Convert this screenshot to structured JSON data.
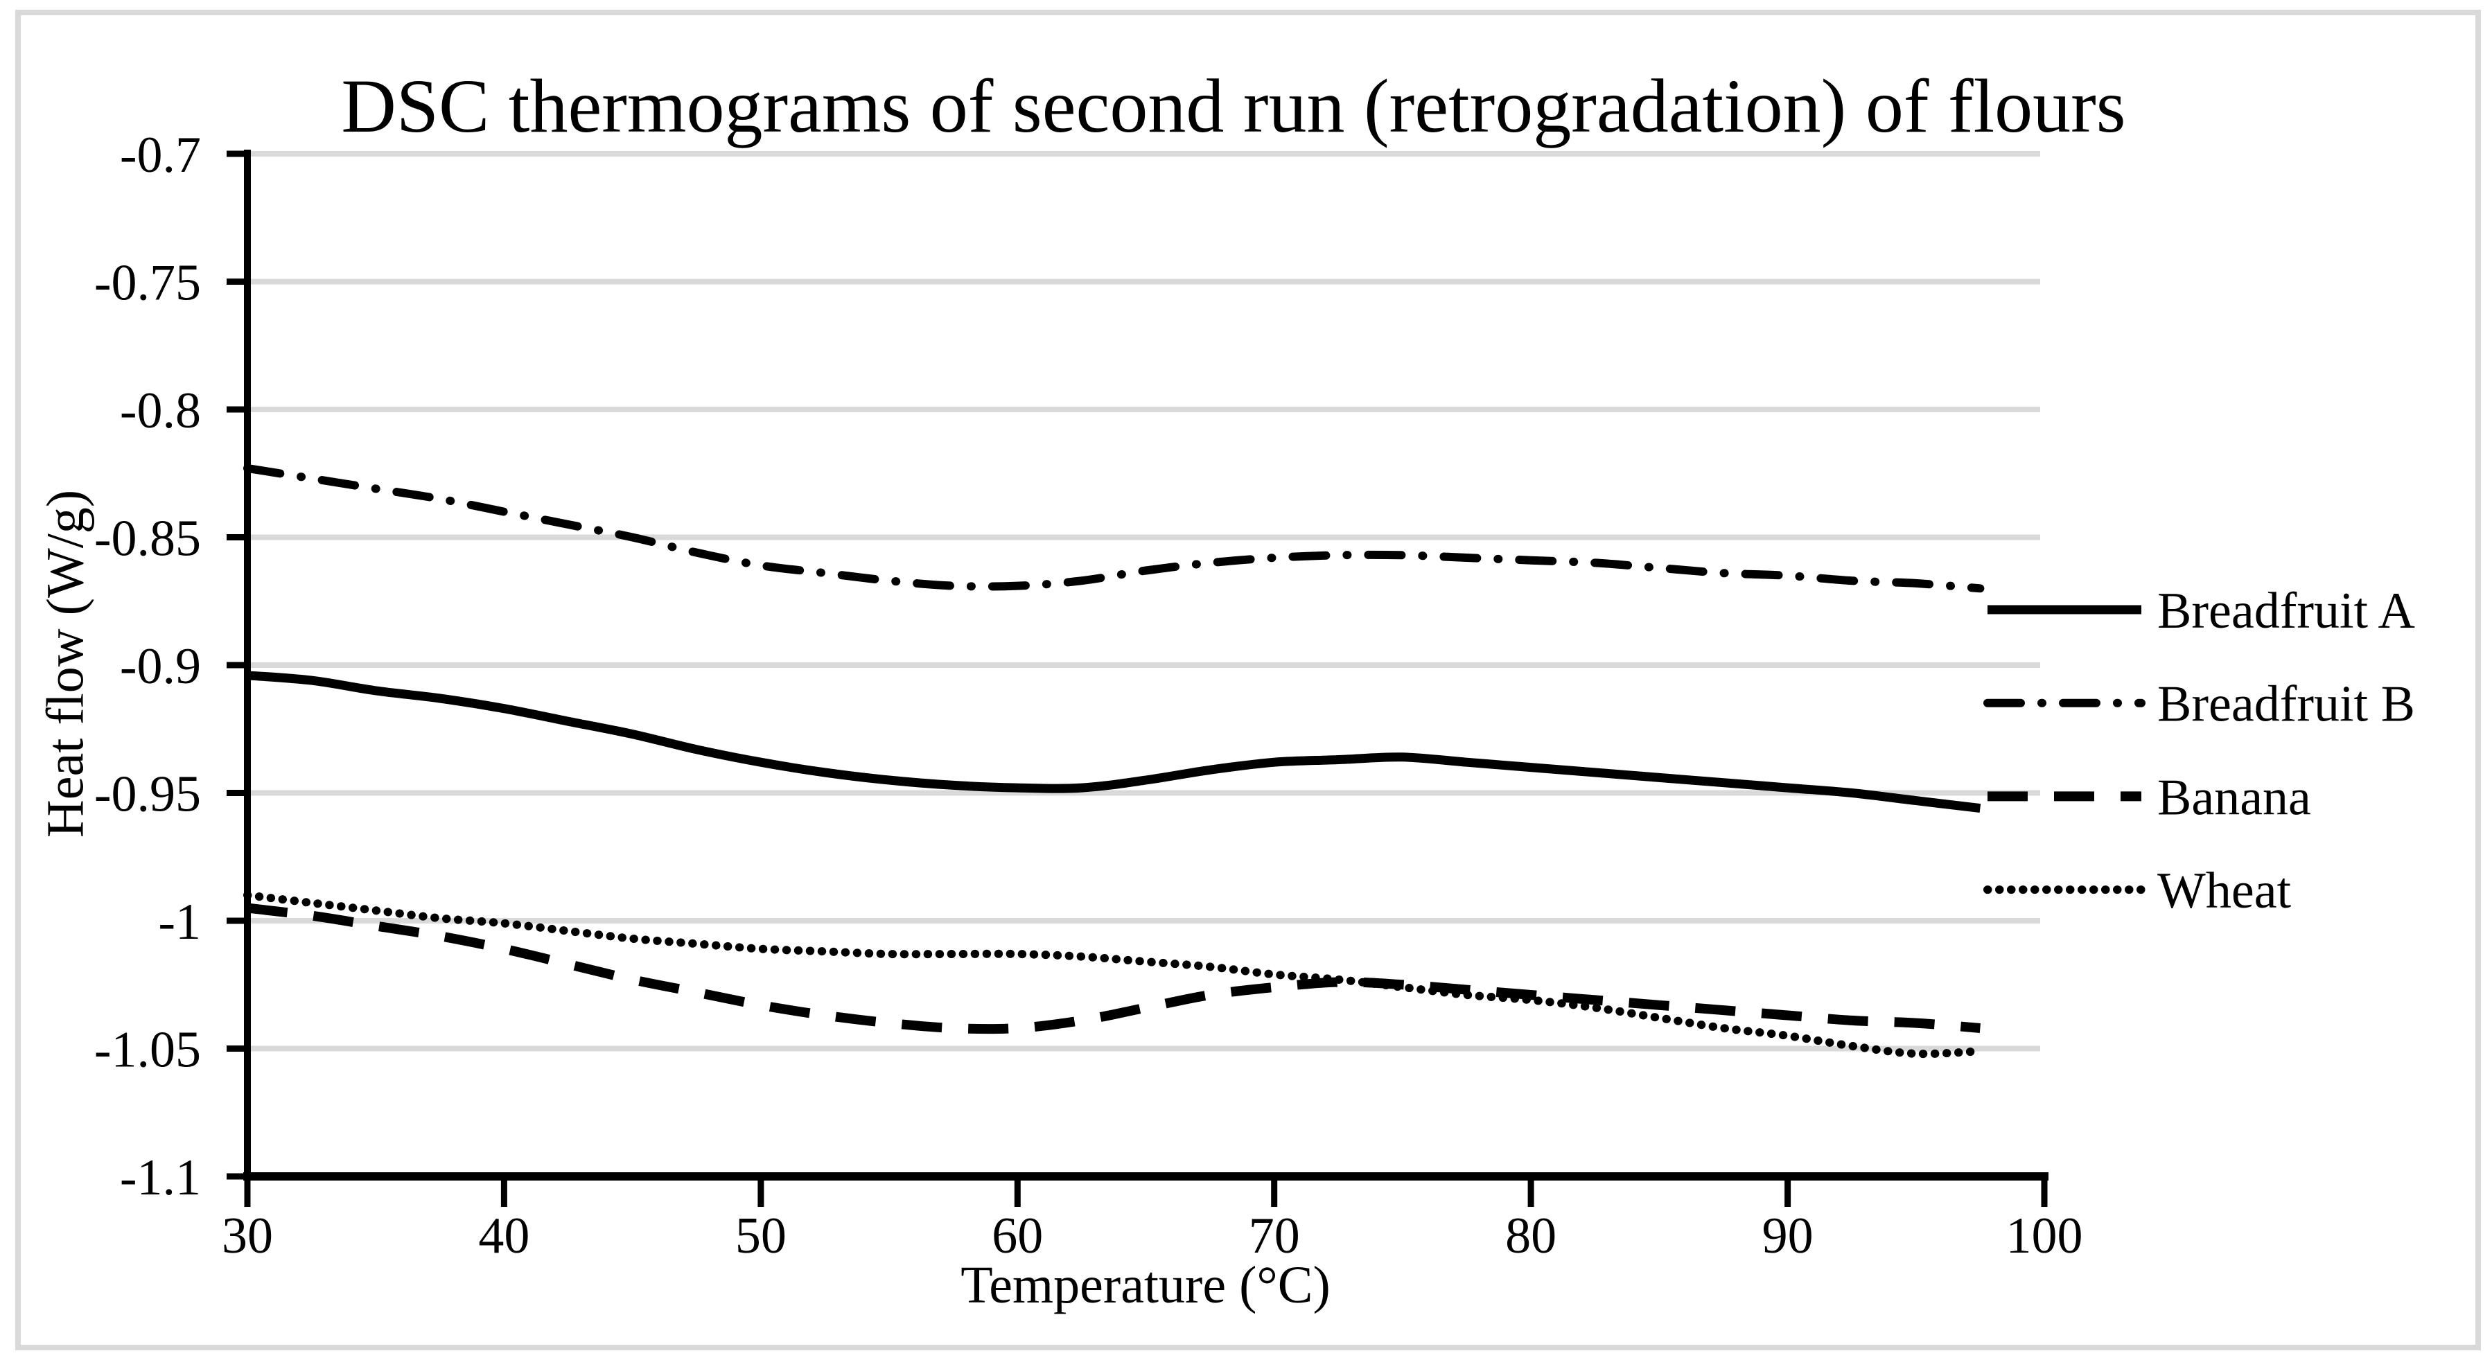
{
  "title": "DSC thermograms of second run (retrogradation) of flours",
  "chart_data": {
    "type": "line",
    "title": "DSC thermograms of second run (retrogradation) of flours",
    "xlabel": "Temperature (°C)",
    "ylabel": "Heat flow (W/g)",
    "xlim": [
      30,
      100
    ],
    "ylim": [
      -1.1,
      -0.7
    ],
    "xticks": [
      30,
      40,
      50,
      60,
      70,
      80,
      90,
      100
    ],
    "yticks": [
      -0.7,
      -0.75,
      -0.8,
      -0.85,
      -0.9,
      -0.95,
      -1,
      -1.05,
      -1.1
    ],
    "ytick_labels": [
      "-0.7",
      "-0.75",
      "-0.8",
      "-0.85",
      "-0.9",
      "-0.95",
      "-1",
      "-1.05",
      "-1.1"
    ],
    "grid": true,
    "legend_position": "right",
    "x": [
      30,
      32.5,
      35,
      37.5,
      40,
      42.5,
      45,
      47.5,
      50,
      52.5,
      55,
      57.5,
      60,
      62.5,
      65,
      67.5,
      70,
      72.5,
      75,
      77.5,
      80,
      82.5,
      85,
      87.5,
      90,
      92.5,
      95,
      97.5
    ],
    "series": [
      {
        "name": "Breadfruit A",
        "line_style": "solid",
        "values": [
          -0.904,
          -0.906,
          -0.91,
          -0.913,
          -0.917,
          -0.922,
          -0.927,
          -0.933,
          -0.938,
          -0.942,
          -0.945,
          -0.947,
          -0.948,
          -0.948,
          -0.945,
          -0.941,
          -0.938,
          -0.937,
          -0.936,
          -0.938,
          -0.94,
          -0.942,
          -0.944,
          -0.946,
          -0.948,
          -0.95,
          -0.953,
          -0.956
        ]
      },
      {
        "name": "Breadfruit B",
        "line_style": "dashdot",
        "values": [
          -0.823,
          -0.827,
          -0.831,
          -0.835,
          -0.84,
          -0.845,
          -0.85,
          -0.856,
          -0.861,
          -0.864,
          -0.867,
          -0.869,
          -0.869,
          -0.867,
          -0.863,
          -0.86,
          -0.858,
          -0.857,
          -0.857,
          -0.858,
          -0.859,
          -0.86,
          -0.862,
          -0.864,
          -0.865,
          -0.867,
          -0.868,
          -0.87
        ]
      },
      {
        "name": "Banana",
        "line_style": "dashed",
        "values": [
          -0.995,
          -0.998,
          -1.002,
          -1.006,
          -1.011,
          -1.017,
          -1.023,
          -1.028,
          -1.033,
          -1.037,
          -1.04,
          -1.042,
          -1.042,
          -1.039,
          -1.034,
          -1.029,
          -1.026,
          -1.024,
          -1.025,
          -1.027,
          -1.029,
          -1.031,
          -1.033,
          -1.035,
          -1.037,
          -1.039,
          -1.04,
          -1.042
        ]
      },
      {
        "name": "Wheat",
        "line_style": "dotted",
        "values": [
          -0.99,
          -0.993,
          -0.996,
          -0.999,
          -1.001,
          -1.004,
          -1.007,
          -1.009,
          -1.011,
          -1.012,
          -1.013,
          -1.013,
          -1.013,
          -1.014,
          -1.016,
          -1.018,
          -1.021,
          -1.023,
          -1.026,
          -1.029,
          -1.031,
          -1.034,
          -1.038,
          -1.042,
          -1.045,
          -1.049,
          -1.052,
          -1.051
        ]
      }
    ],
    "colors": {
      "line": "#000000",
      "grid": "#d9d9d9",
      "frame_border": "#d9d9d9",
      "background": "#ffffff",
      "text": "#000000"
    }
  }
}
